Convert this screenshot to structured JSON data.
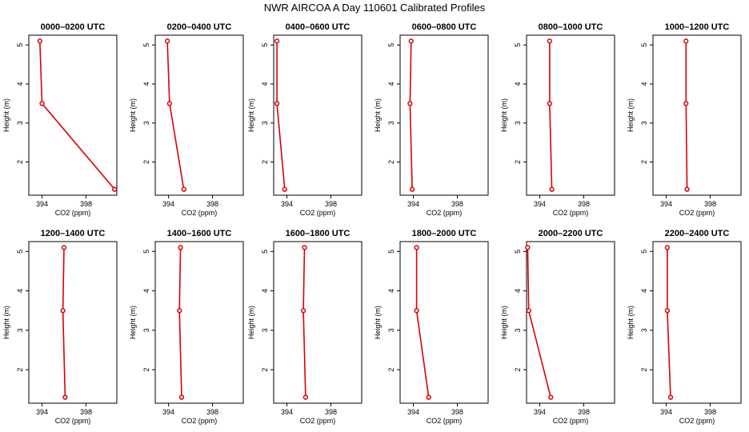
{
  "title": "NWR AIRCOA A  Day 110601  Calibrated Profiles",
  "colors": {
    "line": "#dd0000",
    "axis": "#000000",
    "background": "#ffffff"
  },
  "chart_data": {
    "type": "line",
    "xlabel": "CO2 (ppm)",
    "ylabel": "Height (m)",
    "xlim": [
      392.8,
      400.8
    ],
    "ylim": [
      1.15,
      5.25
    ],
    "xticks": [
      394,
      398
    ],
    "yticks": [
      2,
      3,
      4,
      5
    ],
    "panels": [
      {
        "title": "0000–0200 UTC",
        "points": [
          {
            "co2": 393.8,
            "height": 5.1
          },
          {
            "co2": 394.0,
            "height": 3.5
          },
          {
            "co2": 400.6,
            "height": 1.3
          }
        ]
      },
      {
        "title": "0200–0400 UTC",
        "points": [
          {
            "co2": 393.9,
            "height": 5.1
          },
          {
            "co2": 394.1,
            "height": 3.5
          },
          {
            "co2": 395.4,
            "height": 1.3
          }
        ]
      },
      {
        "title": "0400–0600 UTC",
        "points": [
          {
            "co2": 393.1,
            "height": 5.1
          },
          {
            "co2": 393.1,
            "height": 3.5
          },
          {
            "co2": 393.8,
            "height": 1.3
          }
        ]
      },
      {
        "title": "0600–0800 UTC",
        "points": [
          {
            "co2": 393.8,
            "height": 5.1
          },
          {
            "co2": 393.7,
            "height": 3.5
          },
          {
            "co2": 393.9,
            "height": 1.3
          }
        ]
      },
      {
        "title": "0800–1000 UTC",
        "points": [
          {
            "co2": 394.9,
            "height": 5.1
          },
          {
            "co2": 394.9,
            "height": 3.5
          },
          {
            "co2": 395.1,
            "height": 1.3
          }
        ]
      },
      {
        "title": "1000–1200 UTC",
        "points": [
          {
            "co2": 395.8,
            "height": 5.1
          },
          {
            "co2": 395.8,
            "height": 3.5
          },
          {
            "co2": 395.9,
            "height": 1.3
          }
        ]
      },
      {
        "title": "1200–1400 UTC",
        "points": [
          {
            "co2": 396.0,
            "height": 5.1
          },
          {
            "co2": 395.9,
            "height": 3.5
          },
          {
            "co2": 396.1,
            "height": 1.3
          }
        ]
      },
      {
        "title": "1400–1600 UTC",
        "points": [
          {
            "co2": 395.1,
            "height": 5.1
          },
          {
            "co2": 395.0,
            "height": 3.5
          },
          {
            "co2": 395.2,
            "height": 1.3
          }
        ]
      },
      {
        "title": "1600–1800 UTC",
        "points": [
          {
            "co2": 395.6,
            "height": 5.1
          },
          {
            "co2": 395.5,
            "height": 3.5
          },
          {
            "co2": 395.7,
            "height": 1.3
          }
        ]
      },
      {
        "title": "1800–2000 UTC",
        "points": [
          {
            "co2": 394.3,
            "height": 5.1
          },
          {
            "co2": 394.3,
            "height": 3.5
          },
          {
            "co2": 395.4,
            "height": 1.3
          }
        ]
      },
      {
        "title": "2000–2200 UTC",
        "points": [
          {
            "co2": 392.9,
            "height": 5.1
          },
          {
            "co2": 393.0,
            "height": 3.5
          },
          {
            "co2": 395.0,
            "height": 1.3
          }
        ]
      },
      {
        "title": "2200–2400 UTC",
        "points": [
          {
            "co2": 394.1,
            "height": 5.1
          },
          {
            "co2": 394.1,
            "height": 3.5
          },
          {
            "co2": 394.4,
            "height": 1.3
          }
        ]
      }
    ]
  }
}
